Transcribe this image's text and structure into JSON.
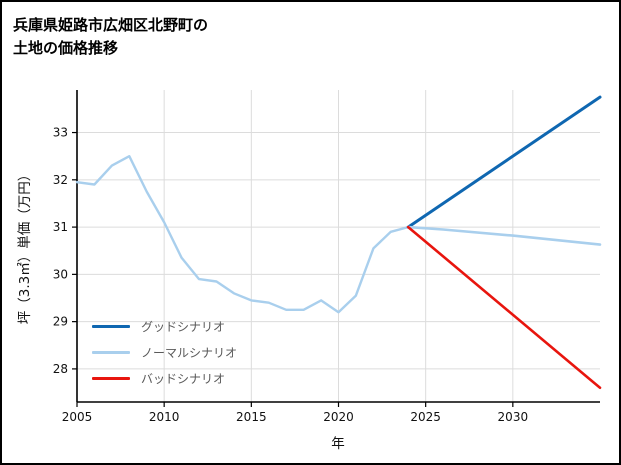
{
  "page": {
    "title_lines": [
      "兵庫県姫路市広畑区北野町の",
      "土地の価格推移"
    ]
  },
  "chart_data": {
    "type": "line",
    "title": "兵庫県姫路市広畑区北野町の土地の価格推移",
    "xlabel": "年",
    "ylabel": "坪（3.3㎡）単価（万円）",
    "xlim": [
      2005,
      2035
    ],
    "ylim": [
      27.3,
      33.9
    ],
    "xticks": [
      2005,
      2010,
      2015,
      2020,
      2025,
      2030
    ],
    "yticks": [
      28,
      29,
      30,
      31,
      32,
      33
    ],
    "grid": true,
    "legend_position": "lower-left",
    "colors": {
      "good": "#0f67b1",
      "normal": "#a9cfed",
      "bad": "#e8150e",
      "grid": "#dcdcdc",
      "axis": "#000000"
    },
    "series": [
      {
        "id": "history",
        "name": "",
        "legend": false,
        "color": "#a9cfed",
        "width": 2.4,
        "x": [
          2005,
          2006,
          2007,
          2008,
          2009,
          2010,
          2011,
          2012,
          2013,
          2014,
          2015,
          2016,
          2017,
          2018,
          2019,
          2020,
          2021,
          2022,
          2023,
          2024
        ],
        "y": [
          31.95,
          31.9,
          32.3,
          32.5,
          31.75,
          31.1,
          30.35,
          29.9,
          29.85,
          29.6,
          29.45,
          29.4,
          29.25,
          29.25,
          29.45,
          29.2,
          29.55,
          30.55,
          30.9,
          31.0
        ]
      },
      {
        "id": "good",
        "name": "グッドシナリオ",
        "legend": true,
        "color": "#0f67b1",
        "width": 3,
        "x": [
          2024,
          2035
        ],
        "y": [
          31.0,
          33.75
        ]
      },
      {
        "id": "normal",
        "name": "ノーマルシナリオ",
        "legend": true,
        "color": "#a9cfed",
        "width": 2.6,
        "x": [
          2024,
          2026,
          2030,
          2035
        ],
        "y": [
          31.0,
          30.95,
          30.82,
          30.63
        ]
      },
      {
        "id": "bad",
        "name": "バッドシナリオ",
        "legend": true,
        "color": "#e8150e",
        "width": 2.6,
        "x": [
          2024,
          2035
        ],
        "y": [
          31.0,
          27.6
        ]
      }
    ]
  }
}
